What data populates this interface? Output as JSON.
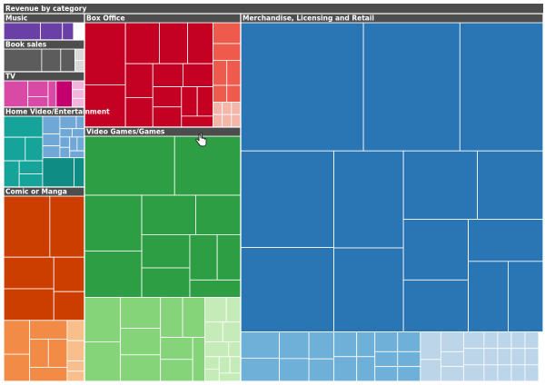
{
  "chart_data": {
    "type": "treemap",
    "title": "Revenue by category",
    "header_color": "#4d4d4d",
    "groups": [
      {
        "name": "Music",
        "color": "#6a3fa6",
        "subgroups": [
          {
            "shade": "#ffffff",
            "values": [
              1,
              1,
              1
            ]
          },
          {
            "shade": "#6a3fa6",
            "values": [
              10,
              6,
              3
            ]
          }
        ]
      },
      {
        "name": "Book sales",
        "color": "#5c5c5c",
        "subgroups": [
          {
            "shade": "#d9d9d9",
            "values": [
              1,
              1
            ]
          },
          {
            "shade": "#5c5c5c",
            "values": [
              8,
              4,
              3
            ]
          }
        ]
      },
      {
        "name": "TV",
        "color": "#d84aa6",
        "subgroups": [
          {
            "shade": "#f2b6dc",
            "values": [
              1,
              1,
              1
            ]
          },
          {
            "shade": "#d84aa6",
            "values": [
              6,
              3,
              2,
              2
            ]
          },
          {
            "shade": "#c4006e",
            "values": [
              4
            ]
          }
        ]
      },
      {
        "name": "Home Video/Entertainment",
        "color": "#0f8c84",
        "subgroups": [
          {
            "shade": "#6fa8d6",
            "values": [
              3,
              2,
              2,
              2,
              1,
              1,
              1,
              1,
              1,
              1,
              1,
              1
            ]
          },
          {
            "shade": "#15a39a",
            "values": [
              8,
              5,
              4,
              4,
              3,
              3
            ]
          },
          {
            "shade": "#0f8c84",
            "values": [
              9,
              3
            ]
          }
        ]
      },
      {
        "name": "Comic or Manga",
        "color": "#cc3d00",
        "subgroups": [
          {
            "shade": "#f8bf8c",
            "values": [
              2,
              2,
              1,
              1
            ]
          },
          {
            "shade": "#f28b45",
            "values": [
              5,
              4,
              4,
              3,
              3,
              3
            ]
          },
          {
            "shade": "#cc3d00",
            "values": [
              16,
              12,
              9,
              9,
              6,
              5
            ]
          }
        ]
      },
      {
        "name": "Box Office",
        "color": "#c40023",
        "subgroups": [
          {
            "shade": "#f3b6a8",
            "values": [
              1,
              1,
              1,
              1,
              1,
              1
            ]
          },
          {
            "shade": "#ee5a4c",
            "values": [
              5,
              4,
              3,
              3,
              2,
              2
            ]
          },
          {
            "shade": "#c40023",
            "values": [
              22,
              15,
              12,
              10,
              9,
              8,
              7,
              6,
              6,
              5,
              5,
              4,
              4,
              3
            ]
          }
        ]
      },
      {
        "name": "Video Games/Games",
        "color": "#2e9e44",
        "subgroups": [
          {
            "shade": "#c5ecb8",
            "values": [
              3,
              2,
              2,
              2,
              2,
              1,
              1,
              1,
              1,
              1,
              1
            ]
          },
          {
            "shade": "#85d47a",
            "values": [
              9,
              8,
              7,
              6,
              6,
              5,
              5,
              4,
              4,
              3
            ]
          },
          {
            "shade": "#2e9e44",
            "values": [
              30,
              22,
              18,
              15,
              12,
              10,
              9,
              8,
              7,
              6,
              5
            ]
          }
        ]
      },
      {
        "name": "Merchandise, Licensing and Retail",
        "color": "#2a75b3",
        "subgroups": [
          {
            "shade": "#ffffff",
            "values": [
              1,
              1
            ]
          },
          {
            "shade": "#bcd5e8",
            "values": [
              5,
              4,
              4,
              3,
              3,
              3,
              3,
              3,
              2,
              2,
              2,
              2,
              2,
              2,
              2,
              2,
              2,
              2,
              2,
              2
            ]
          },
          {
            "shade": "#6fb0d8",
            "values": [
              9,
              8,
              7,
              6,
              6,
              5,
              5,
              5,
              4,
              4,
              4,
              4,
              3,
              3,
              3,
              3
            ]
          },
          {
            "shade": "#2a75b3",
            "values": [
              140,
              110,
              95,
              80,
              70,
              60,
              52,
              45,
              40,
              35,
              30,
              28,
              25,
              22
            ]
          }
        ]
      }
    ]
  }
}
